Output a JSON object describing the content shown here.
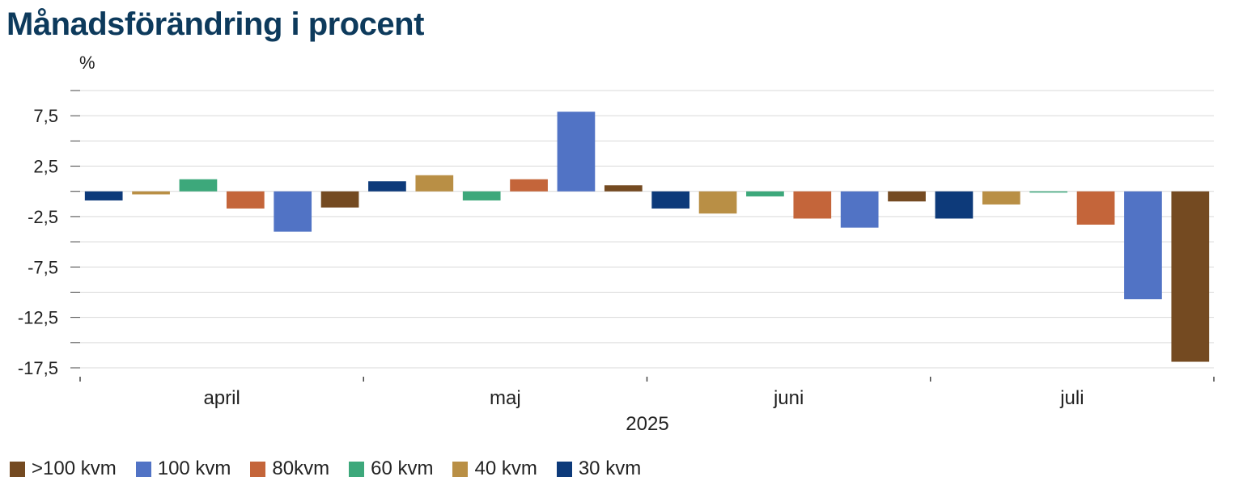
{
  "title": "Månadsförändring i procent",
  "chart_data": {
    "type": "bar",
    "title": "Månadsförändring i procent",
    "ylabel": "%",
    "xlabel": "2025",
    "categories": [
      "april",
      "maj",
      "juni",
      "juli"
    ],
    "ylim": [
      -17.5,
      10
    ],
    "yticks": [
      7.5,
      2.5,
      -2.5,
      -7.5,
      -12.5,
      -17.5
    ],
    "ytick_labels": [
      "7,5",
      "2,5",
      "-2,5",
      "-7,5",
      "-12,5",
      "-17,5"
    ],
    "grid": true,
    "legend_position": "bottom",
    "series": [
      {
        "name": "30 kvm",
        "color": "#0d3a7a",
        "values": [
          -0.9,
          1.0,
          -1.7,
          -2.7
        ]
      },
      {
        "name": "40 kvm",
        "color": "#b98f45",
        "values": [
          -0.3,
          1.6,
          -2.2,
          -1.3
        ]
      },
      {
        "name": "60 kvm",
        "color": "#3da87b",
        "values": [
          1.2,
          -0.9,
          -0.5,
          -0.1
        ]
      },
      {
        "name": "80kvm",
        "color": "#c4653a",
        "values": [
          -1.7,
          1.2,
          -2.7,
          -3.3
        ]
      },
      {
        "name": "100 kvm",
        "color": "#5173c5",
        "values": [
          -4.0,
          7.9,
          -3.6,
          -10.7
        ]
      },
      {
        "name": ">100 kvm",
        "color": "#744a21",
        "values": [
          -1.6,
          0.6,
          -1.0,
          -16.9
        ]
      }
    ],
    "legend_order": [
      ">100 kvm",
      "100 kvm",
      "80kvm",
      "60 kvm",
      "40 kvm",
      "30 kvm"
    ]
  }
}
